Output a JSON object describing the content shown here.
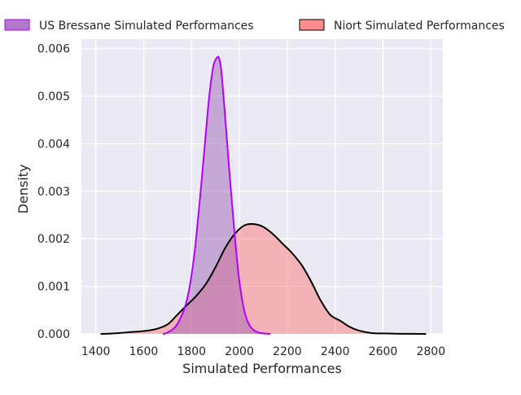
{
  "chart_data": {
    "type": "area",
    "xlabel": "Simulated Performances",
    "ylabel": "Density",
    "xlim": [
      1340,
      2850
    ],
    "ylim": [
      0,
      0.0062
    ],
    "xticks": [
      "1400",
      "1600",
      "1800",
      "2000",
      "2200",
      "2400",
      "2600",
      "2800"
    ],
    "yticks": [
      "0.000",
      "0.001",
      "0.002",
      "0.003",
      "0.004",
      "0.005",
      "0.006"
    ],
    "grid": true,
    "legend_placement": "top, outside plot",
    "series": [
      {
        "name": "US Bressane Simulated Performances",
        "fill_color": "#9b59b6",
        "line_color": "#b300ff",
        "x": [
          1680,
          1700,
          1740,
          1780,
          1810,
          1840,
          1870,
          1890,
          1905,
          1915,
          1925,
          1940,
          1960,
          1980,
          2000,
          2020,
          2040,
          2060,
          2080,
          2100,
          2130
        ],
        "y": [
          0.0,
          3e-05,
          0.0002,
          0.0007,
          0.0016,
          0.0031,
          0.0048,
          0.0056,
          0.0058,
          0.0058,
          0.0055,
          0.0046,
          0.0033,
          0.0021,
          0.0011,
          0.0005,
          0.0002,
          8e-05,
          3e-05,
          1e-05,
          0.0
        ]
      },
      {
        "name": "Niort Simulated Performances",
        "fill_color": "#ff6f6f",
        "line_color": "#000000",
        "x": [
          1420,
          1450,
          1500,
          1550,
          1600,
          1650,
          1700,
          1740,
          1780,
          1820,
          1860,
          1900,
          1940,
          1980,
          2020,
          2060,
          2100,
          2140,
          2180,
          2220,
          2260,
          2300,
          2340,
          2380,
          2420,
          2460,
          2500,
          2550,
          2600,
          2650,
          2700,
          2750,
          2780
        ],
        "y": [
          0.0,
          5e-06,
          2e-05,
          4e-05,
          6e-05,
          0.0001,
          0.0002,
          0.0004,
          0.0006,
          0.0008,
          0.00105,
          0.0014,
          0.0018,
          0.0021,
          0.00228,
          0.00231,
          0.00225,
          0.0021,
          0.0019,
          0.0017,
          0.00145,
          0.0011,
          0.0007,
          0.0004,
          0.00028,
          0.00015,
          7e-05,
          2e-05,
          1e-05,
          5e-06,
          2e-06,
          1e-06,
          0.0
        ]
      }
    ]
  }
}
